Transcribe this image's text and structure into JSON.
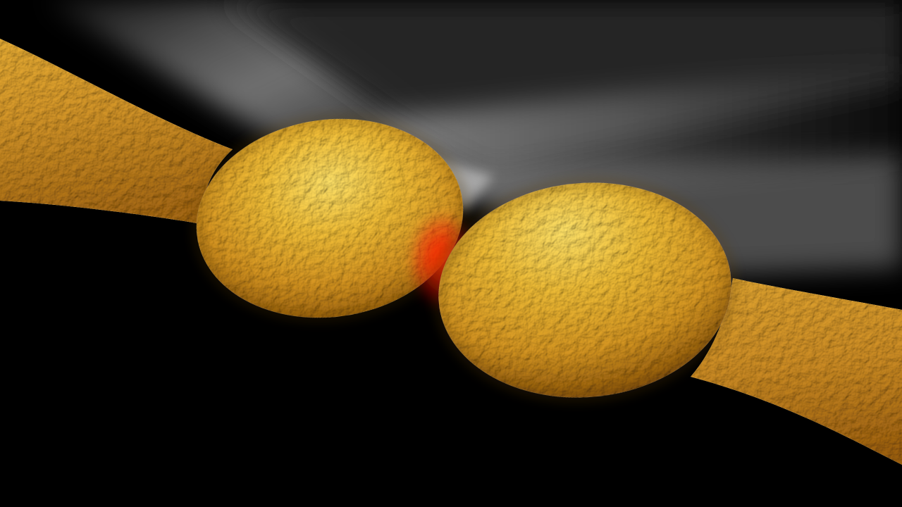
{
  "scene": {
    "colors": {
      "background": "#000000",
      "gold_highlight": "#FFF6A0",
      "gold_mid": "#E8B84A",
      "gold_shadow": "#8A5A10",
      "light_beam": "#BFBFBF",
      "hotspot_glow": "#FF2A00"
    }
  }
}
